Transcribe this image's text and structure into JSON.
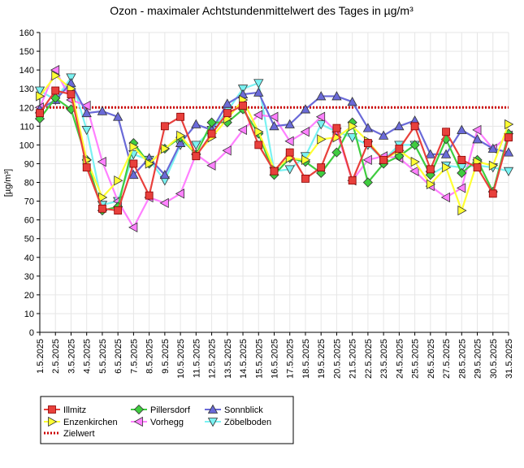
{
  "chart_data": {
    "type": "line",
    "title": "Ozon -  maximaler Achtstundenmittelwert des Tages in µg/m³",
    "ylabel": "[µg/m³]",
    "xlabel": "",
    "ylim": [
      0,
      160
    ],
    "yticks": [
      0,
      10,
      20,
      30,
      40,
      50,
      60,
      70,
      80,
      90,
      100,
      110,
      120,
      130,
      140,
      150,
      160
    ],
    "grid": true,
    "legend_position": "bottom-left",
    "categories": [
      "1.5.2025",
      "2.5.2025",
      "3.5.2025",
      "4.5.2025",
      "5.5.2025",
      "6.5.2025",
      "7.5.2025",
      "8.5.2025",
      "9.5.2025",
      "10.5.2025",
      "11.5.2025",
      "12.5.2025",
      "13.5.2025",
      "14.5.2025",
      "15.5.2025",
      "16.5.2025",
      "17.5.2025",
      "18.5.2025",
      "19.5.2025",
      "20.5.2025",
      "21.5.2025",
      "22.5.2025",
      "23.5.2025",
      "24.5.2025",
      "25.5.2025",
      "26.5.2025",
      "27.5.2025",
      "28.5.2025",
      "29.5.2025",
      "30.5.2025",
      "31.5.2025"
    ],
    "series": [
      {
        "name": "Illmitz",
        "color": "#e8403c",
        "marker": "square",
        "values": [
          117,
          129,
          127,
          88,
          66,
          65,
          90,
          73,
          110,
          115,
          94,
          106,
          117,
          121,
          100,
          86,
          96,
          82,
          88,
          109,
          81,
          101,
          92,
          98,
          110,
          87,
          107,
          92,
          88,
          74,
          104
        ]
      },
      {
        "name": "Enzenkirchen",
        "color": "#ffff33",
        "marker": "triangle-right",
        "values": [
          126,
          137,
          130,
          92,
          72,
          81,
          99,
          90,
          98,
          105,
          95,
          104,
          114,
          124,
          107,
          87,
          93,
          92,
          103,
          104,
          110,
          102,
          92,
          97,
          91,
          79,
          88,
          65,
          91,
          89,
          111
        ]
      },
      {
        "name": "Pillersdorf",
        "color": "#3fcc3f",
        "marker": "diamond",
        "values": [
          114,
          125,
          119,
          92,
          65,
          67,
          101,
          90,
          98,
          104,
          95,
          112,
          112,
          119,
          106,
          84,
          93,
          91,
          85,
          96,
          112,
          80,
          90,
          94,
          100,
          84,
          103,
          85,
          92,
          75,
          106
        ]
      },
      {
        "name": "Vorhegg",
        "color": "#ff80ff",
        "marker": "triangle-left",
        "values": [
          120,
          140,
          124,
          121,
          91,
          70,
          56,
          72,
          69,
          74,
          95,
          89,
          97,
          108,
          116,
          115,
          102,
          107,
          115,
          107,
          81,
          92,
          94,
          93,
          86,
          78,
          72,
          77,
          108,
          98,
          105
        ]
      },
      {
        "name": "Sonnblick",
        "color": "#6a6ad8",
        "marker": "triangle-up",
        "values": [
          119,
          124,
          133,
          117,
          118,
          115,
          84,
          93,
          84,
          101,
          111,
          108,
          122,
          127,
          128,
          110,
          111,
          119,
          126,
          126,
          123,
          109,
          105,
          110,
          113,
          95,
          95,
          108,
          103,
          98,
          96
        ]
      },
      {
        "name": "Zöbelboden",
        "color": "#7af2f2",
        "marker": "triangle-down",
        "values": [
          129,
          124,
          136,
          108,
          68,
          70,
          95,
          92,
          81,
          100,
          100,
          108,
          118,
          130,
          133,
          86,
          87,
          94,
          111,
          107,
          104,
          100,
          92,
          100,
          100,
          84,
          89,
          88,
          89,
          88,
          86
        ]
      }
    ],
    "reference_line": {
      "name": "Zielwert",
      "value": 120,
      "color": "#cc0000"
    }
  }
}
